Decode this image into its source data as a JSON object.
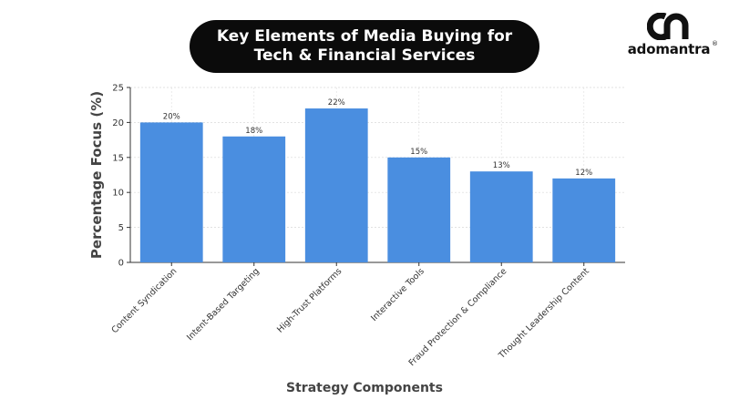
{
  "header": {
    "title_line1": "Key Elements of Media Buying for",
    "title_line2": "Tech & Financial Services"
  },
  "logo": {
    "text": "adomantra",
    "reg_mark": "®",
    "icon": "adomantra-logo-mark"
  },
  "colors": {
    "bar": "#4a8ee0",
    "title_background": "#0b0b0b",
    "title_text": "#ffffff",
    "axis_title": "#444444"
  },
  "chart_data": {
    "type": "bar",
    "categories": [
      "Content Syndication",
      "Intent-Based Targeting",
      "High-Trust Platforms",
      "Interactive Tools",
      "Fraud Protection & Compliance",
      "Thought Leadership Content"
    ],
    "values": [
      20,
      18,
      22,
      15,
      13,
      12
    ],
    "data_labels": [
      "20%",
      "18%",
      "22%",
      "15%",
      "13%",
      "12%"
    ],
    "xlabel": "Strategy Components",
    "ylabel": "Percentage Focus (%)",
    "ylim": [
      0,
      25
    ],
    "yticks": [
      0,
      5,
      10,
      15,
      20,
      25
    ],
    "grid": true,
    "legend": "none"
  }
}
